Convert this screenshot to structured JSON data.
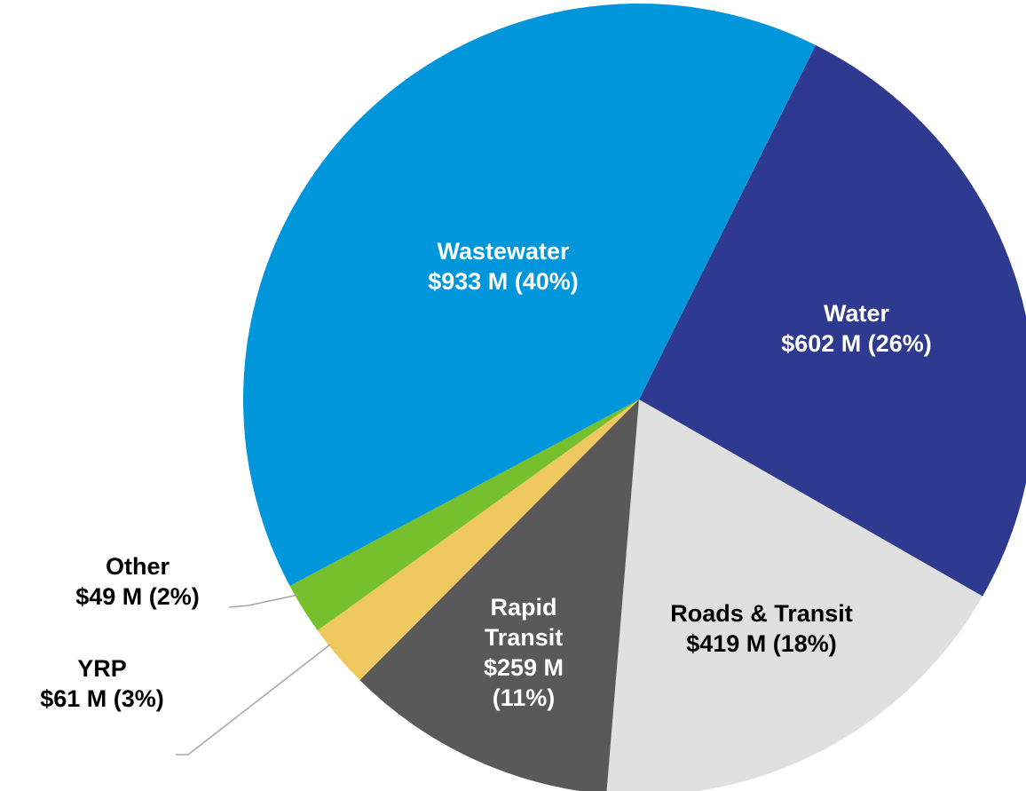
{
  "chart_data": {
    "type": "pie",
    "categories": [
      "Water",
      "Roads & Transit",
      "Rapid Transit",
      "YRP",
      "Other",
      "Wastewater"
    ],
    "values": [
      602,
      419,
      259,
      61,
      49,
      933
    ],
    "value_labels": [
      "$602 M (26%)",
      "$419 M (18%)",
      "$259 M (11%)",
      "$61 M (3%)",
      "$49 M (2%)",
      "$933 M (40%)"
    ],
    "colors": [
      "#2e3a8f",
      "#e0e0e0",
      "#595959",
      "#f0c860",
      "#76bf2d",
      "#0096dc"
    ]
  }
}
